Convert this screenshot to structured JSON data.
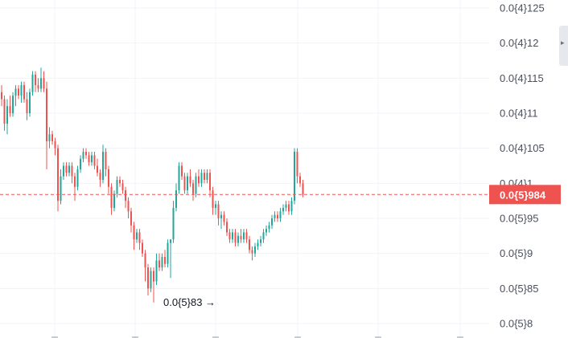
{
  "chart_data": {
    "type": "candlestick",
    "y_axis": {
      "scale": "linear",
      "ticks": [
        {
          "value": 1.25e-05,
          "label": "0.0{4}125"
        },
        {
          "value": 1.2e-05,
          "label": "0.0{4}12"
        },
        {
          "value": 1.15e-05,
          "label": "0.0{4}115"
        },
        {
          "value": 1.1e-05,
          "label": "0.0{4}11"
        },
        {
          "value": 1.05e-05,
          "label": "0.0{4}105"
        },
        {
          "value": 1e-05,
          "label": "0.0{4}1"
        },
        {
          "value": 9.5e-06,
          "label": "0.0{5}95"
        },
        {
          "value": 9e-06,
          "label": "0.0{5}9"
        },
        {
          "value": 8.5e-06,
          "label": "0.0{5}85"
        },
        {
          "value": 8e-06,
          "label": "0.0{5}8"
        }
      ]
    },
    "grid": true,
    "colors": {
      "up": "#26a69a",
      "down": "#ef5350",
      "price_line": "#ef5350",
      "grid": "#f0f3fa",
      "axis_text": "#4a4f5c"
    },
    "current_price": {
      "value": 9.84e-06,
      "label": "0.0{5}984"
    },
    "annotations": [
      {
        "text": "0.0{5}83 →",
        "value": 8.3e-06
      }
    ],
    "series": [
      {
        "values": [
          [
            1.13e-05,
            1.14e-05,
            1.11e-05,
            1.12e-05
          ],
          [
            1.12e-05,
            1.125e-05,
            1.075e-05,
            1.085e-05
          ],
          [
            1.085e-05,
            1.12e-05,
            1.07e-05,
            1.11e-05
          ],
          [
            1.11e-05,
            1.125e-05,
            1.095e-05,
            1.1e-05
          ],
          [
            1.1e-05,
            1.13e-05,
            1.095e-05,
            1.125e-05
          ],
          [
            1.125e-05,
            1.14e-05,
            1.11e-05,
            1.135e-05
          ],
          [
            1.135e-05,
            1.14e-05,
            1.12e-05,
            1.125e-05
          ],
          [
            1.125e-05,
            1.145e-05,
            1.115e-05,
            1.14e-05
          ],
          [
            1.14e-05,
            1.145e-05,
            1.115e-05,
            1.12e-05
          ],
          [
            1.12e-05,
            1.13e-05,
            1.09e-05,
            1.1e-05
          ],
          [
            1.1e-05,
            1.135e-05,
            1.095e-05,
            1.13e-05
          ],
          [
            1.13e-05,
            1.16e-05,
            1.125e-05,
            1.155e-05
          ],
          [
            1.155e-05,
            1.16e-05,
            1.13e-05,
            1.14e-05
          ],
          [
            1.14e-05,
            1.15e-05,
            1.13e-05,
            1.135e-05
          ],
          [
            1.135e-05,
            1.165e-05,
            1.13e-05,
            1.15e-05
          ],
          [
            1.15e-05,
            1.16e-05,
            1.13e-05,
            1.135e-05
          ],
          [
            1.135e-05,
            1.145e-05,
            1.02e-05,
            1.06e-05
          ],
          [
            1.06e-05,
            1.08e-05,
            1.05e-05,
            1.07e-05
          ],
          [
            1.07e-05,
            1.075e-05,
            1.055e-05,
            1.06e-05
          ],
          [
            1.06e-05,
            1.065e-05,
            1.04e-05,
            1.05e-05
          ],
          [
            1.05e-05,
            1.055e-05,
            9.6e-06,
            9.75e-06
          ],
          [
            9.75e-06,
            1.02e-05,
            9.7e-06,
            1.01e-05
          ],
          [
            1.01e-05,
            1.03e-05,
            1.005e-05,
            1.025e-05
          ],
          [
            1.025e-05,
            1.03e-05,
            1.01e-05,
            1.015e-05
          ],
          [
            1.015e-05,
            1.03e-05,
            1.01e-05,
            1.025e-05
          ],
          [
            1.025e-05,
            1.03e-05,
            1e-05,
            1.01e-05
          ],
          [
            1.01e-05,
            1.015e-05,
            9.75e-06,
            9.95e-06
          ],
          [
            9.95e-06,
            1.025e-05,
            9.9e-06,
            1.02e-05
          ],
          [
            1.02e-05,
            1.04e-05,
            1.015e-05,
            1.035e-05
          ],
          [
            1.035e-05,
            1.05e-05,
            1.03e-05,
            1.045e-05
          ],
          [
            1.045e-05,
            1.05e-05,
            1.035e-05,
            1.04e-05
          ],
          [
            1.04e-05,
            1.045e-05,
            1.025e-05,
            1.03e-05
          ],
          [
            1.03e-05,
            1.045e-05,
            1.025e-05,
            1.04e-05
          ],
          [
            1.04e-05,
            1.045e-05,
            1.02e-05,
            1.025e-05
          ],
          [
            1.025e-05,
            1.035e-05,
            1.01e-05,
            1.015e-05
          ],
          [
            1.015e-05,
            1.02e-05,
            9.95e-06,
            1.005e-05
          ],
          [
            1.005e-05,
            1.055e-05,
            1e-05,
            1.045e-05
          ],
          [
            1.045e-05,
            1.05e-05,
            1.01e-05,
            1.02e-05
          ],
          [
            1.02e-05,
            1.025e-05,
            9.85e-06,
            9.95e-06
          ],
          [
            9.95e-06,
            1e-05,
            9.55e-06,
            9.65e-06
          ],
          [
            9.65e-06,
            9.9e-06,
            9.6e-06,
            9.85e-06
          ],
          [
            9.85e-06,
            1.01e-05,
            9.8e-06,
            1.005e-05
          ],
          [
            1.005e-05,
            1.01e-05,
            9.95e-06,
            1e-05
          ],
          [
            1e-05,
            1.005e-05,
            9.85e-06,
            9.9e-06
          ],
          [
            9.9e-06,
            9.95e-06,
            9.65e-06,
            9.75e-06
          ],
          [
            9.75e-06,
            9.8e-06,
            9.5e-06,
            9.6e-06
          ],
          [
            9.6e-06,
            9.65e-06,
            9.3e-06,
            9.4e-06
          ],
          [
            9.4e-06,
            9.45e-06,
            9.05e-06,
            9.2e-06
          ],
          [
            9.2e-06,
            9.35e-06,
            9.15e-06,
            9.3e-06
          ],
          [
            9.3e-06,
            9.35e-06,
            9.05e-06,
            9.15e-06
          ],
          [
            9.15e-06,
            9.2e-06,
            8.95e-06,
            9e-06
          ],
          [
            9e-06,
            9.05e-06,
            8.6e-06,
            8.8e-06
          ],
          [
            8.8e-06,
            8.85e-06,
            8.4e-06,
            8.5e-06
          ],
          [
            8.5e-06,
            8.8e-06,
            8.45e-06,
            8.75e-06
          ],
          [
            8.75e-06,
            8.8e-06,
            8.3e-06,
            8.6e-06
          ],
          [
            8.6e-06,
            9e-06,
            8.55e-06,
            8.9e-06
          ],
          [
            8.9e-06,
            9e-06,
            8.75e-06,
            8.8e-06
          ],
          [
            8.8e-06,
            9e-06,
            8.75e-06,
            8.95e-06
          ],
          [
            8.95e-06,
            9.05e-06,
            8.8e-06,
            8.85e-06
          ],
          [
            8.85e-06,
            9.2e-06,
            8.8e-06,
            9.15e-06
          ],
          [
            9.15e-06,
            9.2e-06,
            8.65e-06,
            9.2e-06
          ],
          [
            9.2e-06,
            9.75e-06,
            9.15e-06,
            9.65e-06
          ],
          [
            9.65e-06,
            1e-05,
            9.6e-06,
            9.9e-06
          ],
          [
            9.9e-06,
            1.03e-05,
            9.85e-06,
            1.025e-05
          ],
          [
            1.025e-05,
            1.03e-05,
            1.005e-05,
            1.01e-05
          ],
          [
            1.01e-05,
            1.015e-05,
            9.85e-06,
            9.9e-06
          ],
          [
            9.9e-06,
            1.015e-05,
            9.85e-06,
            1.01e-05
          ],
          [
            1.01e-05,
            1.02e-05,
            9.95e-06,
            1e-05
          ],
          [
            1e-05,
            1.005e-05,
            9.75e-06,
            9.85e-06
          ],
          [
            9.85e-06,
            1.015e-05,
            9.8e-06,
            1.01e-05
          ],
          [
            1.01e-05,
            1.02e-05,
            9.95e-06,
            1e-05
          ],
          [
            1e-05,
            1.02e-05,
            9.95e-06,
            1.015e-05
          ],
          [
            1.015e-05,
            1.02e-05,
            1e-05,
            1.005e-05
          ],
          [
            1.005e-05,
            1.02e-05,
            1e-05,
            1.015e-05
          ],
          [
            1.015e-05,
            1.02e-05,
            9.8e-06,
            9.9e-06
          ],
          [
            9.9e-06,
            9.95e-06,
            9.55e-06,
            9.65e-06
          ],
          [
            9.65e-06,
            9.75e-06,
            9.55e-06,
            9.7e-06
          ],
          [
            9.7e-06,
            9.75e-06,
            9.4e-06,
            9.5e-06
          ],
          [
            9.5e-06,
            9.6e-06,
            9.35e-06,
            9.55e-06
          ],
          [
            9.55e-06,
            9.6e-06,
            9.4e-06,
            9.45e-06
          ],
          [
            9.45e-06,
            9.5e-06,
            9.25e-06,
            9.3e-06
          ],
          [
            9.3e-06,
            9.35e-06,
            9.15e-06,
            9.2e-06
          ],
          [
            9.2e-06,
            9.35e-06,
            9.15e-06,
            9.3e-06
          ],
          [
            9.3e-06,
            9.35e-06,
            9.1e-06,
            9.15e-06
          ],
          [
            9.15e-06,
            9.3e-06,
            9.1e-06,
            9.25e-06
          ],
          [
            9.25e-06,
            9.35e-06,
            9.15e-06,
            9.2e-06
          ],
          [
            9.2e-06,
            9.35e-06,
            9.15e-06,
            9.3e-06
          ],
          [
            9.3e-06,
            9.35e-06,
            9.15e-06,
            9.2e-06
          ],
          [
            9.2e-06,
            9.25e-06,
            9e-06,
            9.05e-06
          ],
          [
            9.05e-06,
            9.1e-06,
            8.9e-06,
            9e-06
          ],
          [
            9e-06,
            9.15e-06,
            8.95e-06,
            9.1e-06
          ],
          [
            9.1e-06,
            9.2e-06,
            9.05e-06,
            9.15e-06
          ],
          [
            9.15e-06,
            9.25e-06,
            9.1e-06,
            9.2e-06
          ],
          [
            9.2e-06,
            9.35e-06,
            9.15e-06,
            9.3e-06
          ],
          [
            9.3e-06,
            9.4e-06,
            9.25e-06,
            9.35e-06
          ],
          [
            9.35e-06,
            9.45e-06,
            9.3e-06,
            9.4e-06
          ],
          [
            9.4e-06,
            9.55e-06,
            9.35e-06,
            9.5e-06
          ],
          [
            9.5e-06,
            9.6e-06,
            9.45e-06,
            9.55e-06
          ],
          [
            9.55e-06,
            9.6e-06,
            9.45e-06,
            9.5e-06
          ],
          [
            9.5e-06,
            9.65e-06,
            9.45e-06,
            9.6e-06
          ],
          [
            9.6e-06,
            9.7e-06,
            9.55e-06,
            9.65e-06
          ],
          [
            9.65e-06,
            9.75e-06,
            9.6e-06,
            9.7e-06
          ],
          [
            9.7e-06,
            9.75e-06,
            9.55e-06,
            9.6e-06
          ],
          [
            9.6e-06,
            9.8e-06,
            9.55e-06,
            9.75e-06
          ],
          [
            9.75e-06,
            1.05e-05,
            9.7e-06,
            1.045e-05
          ],
          [
            1.045e-05,
            1.05e-05,
            1e-05,
            1.01e-05
          ],
          [
            1.01e-05,
            1.015e-05,
            9.95e-06,
            1e-05
          ],
          [
            1e-05,
            1.005e-05,
            9.8e-06,
            9.84e-06
          ]
        ]
      }
    ]
  },
  "ui": {
    "scroll_handle_glyph": "▸"
  }
}
